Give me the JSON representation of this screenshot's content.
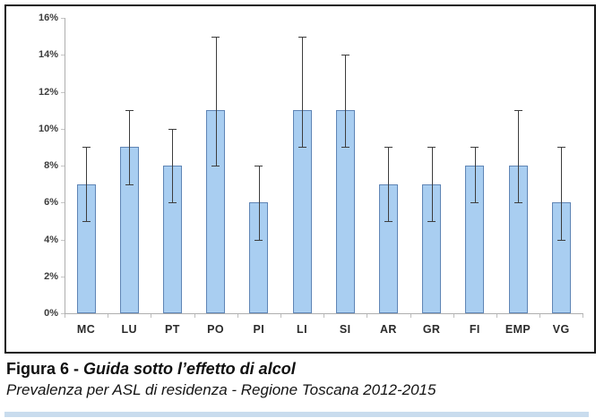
{
  "chart_data": {
    "type": "bar",
    "categories": [
      "MC",
      "LU",
      "PT",
      "PO",
      "PI",
      "LI",
      "SI",
      "AR",
      "GR",
      "FI",
      "EMP",
      "VG"
    ],
    "values": [
      7,
      9,
      8,
      11,
      6,
      11,
      11,
      7,
      7,
      8,
      8,
      6
    ],
    "error_low": [
      5,
      7,
      6,
      8,
      4,
      9,
      9,
      5,
      5,
      6,
      6,
      4
    ],
    "error_high": [
      9,
      11,
      10,
      15,
      8,
      15,
      14,
      9,
      9,
      9,
      11,
      9
    ],
    "title": "Guida sotto l’effetto di alcol",
    "xlabel": "",
    "ylabel": "",
    "ylim": [
      0,
      16
    ],
    "ytick_step": 2,
    "ytick_labels": [
      "0%",
      "2%",
      "4%",
      "6%",
      "8%",
      "10%",
      "12%",
      "14%",
      "16%"
    ],
    "grid": "off",
    "legend": "none",
    "bar_color": "#a9cef1",
    "bar_border_color": "#5f85b5",
    "error_bar_color": "#3d3d3d"
  },
  "caption": {
    "figure_label": "Figura 6 - ",
    "figure_title": "Guida sotto l’effetto di alcol",
    "subtitle": "Prevalenza per ASL di residenza - Regione Toscana 2012-2015"
  },
  "footer": {
    "accent_strip_color": "#c9dcee"
  }
}
